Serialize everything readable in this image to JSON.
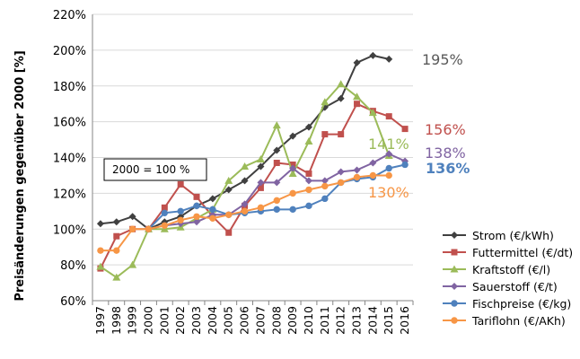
{
  "chart_data": {
    "type": "line",
    "ylabel": "Preisänderungen gegenüber 2000 [%]",
    "xlabel": "",
    "ylim": [
      60,
      220
    ],
    "yticks": [
      60,
      80,
      100,
      120,
      140,
      160,
      180,
      200,
      220
    ],
    "ytick_labels": [
      "60%",
      "80%",
      "100%",
      "120%",
      "140%",
      "160%",
      "180%",
      "200%",
      "220%"
    ],
    "x": [
      1997,
      1998,
      1999,
      2000,
      2001,
      2002,
      2003,
      2004,
      2005,
      2006,
      2007,
      2008,
      2009,
      2010,
      2011,
      2012,
      2013,
      2014,
      2015,
      2016
    ],
    "x_labels": [
      "1997",
      "1998",
      "1999",
      "2000",
      "2001",
      "2002",
      "2003",
      "2004",
      "2005",
      "2006",
      "2007",
      "2008",
      "2009",
      "2010",
      "2011",
      "2012",
      "2013",
      "2014",
      "2015",
      "2016"
    ],
    "grid": "horizontal",
    "legend_position": "right",
    "annotation": "2000 = 100 %",
    "series": [
      {
        "name": "Strom (€/kWh)",
        "color": "#404040",
        "marker": "diamond",
        "x": [
          1997,
          1998,
          1999,
          2000,
          2001,
          2002,
          2003,
          2004,
          2005,
          2006,
          2007,
          2008,
          2009,
          2010,
          2011,
          2012,
          2013,
          2014,
          2015
        ],
        "values": [
          103,
          104,
          107,
          100,
          104,
          107,
          113,
          117,
          122,
          127,
          135,
          144,
          152,
          157,
          168,
          173,
          193,
          197,
          195
        ],
        "end_label": "195%",
        "end_label_color": "#595959"
      },
      {
        "name": "Futtermittel (€/dt)",
        "color": "#c0504d",
        "marker": "square",
        "x": [
          1997,
          1998,
          1999,
          2000,
          2001,
          2002,
          2003,
          2004,
          2005,
          2006,
          2007,
          2008,
          2009,
          2010,
          2011,
          2012,
          2013,
          2014,
          2015,
          2016
        ],
        "values": [
          78,
          96,
          100,
          100,
          112,
          125,
          118,
          107,
          98,
          113,
          123,
          137,
          136,
          131,
          153,
          153,
          170,
          166,
          163,
          156
        ],
        "end_label": "156%",
        "end_label_color": "#c0504d"
      },
      {
        "name": "Kraftstoff (€/l)",
        "color": "#9bbb59",
        "marker": "triangle",
        "x": [
          1997,
          1998,
          1999,
          2000,
          2001,
          2002,
          2003,
          2004,
          2005,
          2006,
          2007,
          2008,
          2009,
          2010,
          2011,
          2012,
          2013,
          2014,
          2015
        ],
        "values": [
          79,
          73,
          80,
          100,
          100,
          101,
          106,
          111,
          127,
          135,
          139,
          158,
          131,
          149,
          171,
          181,
          174,
          165,
          141
        ],
        "end_label": "141%",
        "end_label_color": "#9bbb59"
      },
      {
        "name": "Sauerstoff (€/t)",
        "color": "#8064a2",
        "marker": "diamond",
        "x": [
          2000,
          2001,
          2002,
          2003,
          2004,
          2005,
          2006,
          2007,
          2008,
          2009,
          2010,
          2011,
          2012,
          2013,
          2014,
          2015,
          2016
        ],
        "values": [
          100,
          102,
          103,
          104,
          108,
          108,
          114,
          126,
          126,
          134,
          127,
          127,
          132,
          133,
          137,
          142,
          138
        ],
        "end_label": "138%",
        "end_label_color": "#8064a2"
      },
      {
        "name": "Fischpreise (€/kg)",
        "color": "#4f81bd",
        "marker": "circle",
        "x": [
          2000,
          2001,
          2002,
          2003,
          2004,
          2005,
          2006,
          2007,
          2008,
          2009,
          2010,
          2011,
          2012,
          2013,
          2014,
          2015,
          2016
        ],
        "values": [
          100,
          109,
          110,
          113,
          111,
          108,
          109,
          110,
          111,
          111,
          113,
          117,
          126,
          128,
          129,
          134,
          136
        ],
        "end_label": "136%",
        "end_label_color": "#4f81bd"
      },
      {
        "name": "Tariflohn (€/AKh)",
        "color": "#f79646",
        "marker": "circle",
        "x": [
          1997,
          1998,
          1999,
          2000,
          2001,
          2002,
          2003,
          2004,
          2005,
          2006,
          2007,
          2008,
          2009,
          2010,
          2011,
          2012,
          2013,
          2014,
          2015
        ],
        "values": [
          88,
          88,
          100,
          100,
          102,
          105,
          107,
          106,
          108,
          110,
          112,
          116,
          120,
          122,
          124,
          126,
          129,
          130,
          130
        ],
        "end_label": "130%",
        "end_label_color": "#f79646"
      }
    ]
  }
}
